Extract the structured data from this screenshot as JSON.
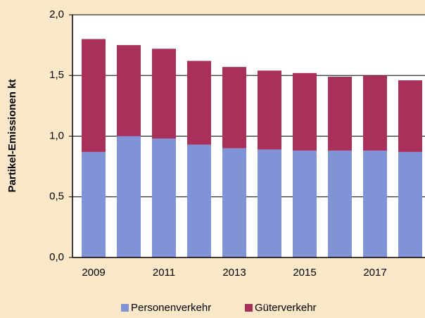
{
  "chart_data": {
    "type": "stacked_bar",
    "y_label": "Partikel-Emissionen kt",
    "categories": [
      "2009",
      null,
      "2011",
      null,
      "2013",
      null,
      "2015",
      null,
      "2017",
      null
    ],
    "series": [
      {
        "name": "Personenverkehr",
        "color": "#8093d6",
        "values": [
          0.87,
          1.0,
          0.98,
          0.93,
          0.9,
          0.89,
          0.88,
          0.88,
          0.88,
          0.87
        ]
      },
      {
        "name": "Güterverkehr",
        "color": "#a8305a",
        "values": [
          0.93,
          0.75,
          0.74,
          0.69,
          0.67,
          0.65,
          0.64,
          0.61,
          0.62,
          0.59
        ]
      }
    ],
    "ylim": [
      0,
      2
    ],
    "yticks": [
      {
        "value": 0,
        "label": "0,0"
      },
      {
        "value": 0.5,
        "label": "0,5"
      },
      {
        "value": 1,
        "label": "1,0"
      },
      {
        "value": 1.5,
        "label": "1,5"
      },
      {
        "value": 2,
        "label": "2,0"
      }
    ],
    "grid": true
  }
}
